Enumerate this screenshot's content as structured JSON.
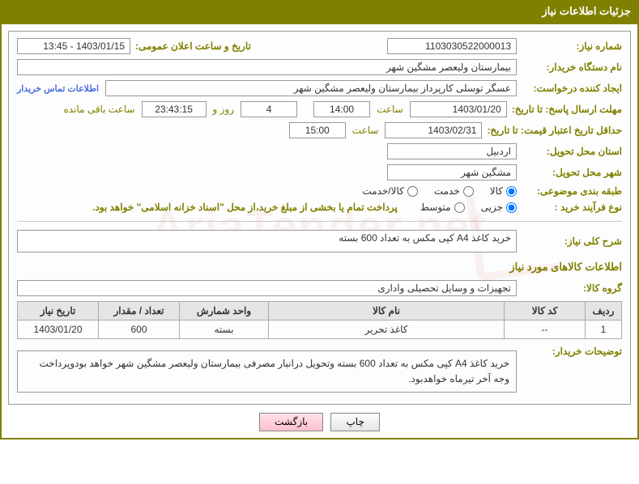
{
  "title": "جزئیات اطلاعات نیاز",
  "fields": {
    "need_no_label": "شماره نیاز:",
    "need_no": "1103030522000013",
    "announce_label": "تاریخ و ساعت اعلان عمومی:",
    "announce": "1403/01/15 - 13:45",
    "buyer_label": "نام دستگاه خریدار:",
    "buyer": "بیمارستان ولیعصر مشگین شهر",
    "requester_label": "ایجاد کننده درخواست:",
    "requester": "عسگر توسلی کارپرداز بیمارستان ولیعصر مشگین شهر",
    "contact_link": "اطلاعات تماس خریدار",
    "response_deadline_label": "مهلت ارسال پاسخ: تا تاریخ:",
    "response_date": "1403/01/20",
    "time_label": "ساعت",
    "response_time": "14:00",
    "days": "4",
    "days_and": "روز و",
    "remaining_time": "23:43:15",
    "remaining_label": "ساعت باقی مانده",
    "validity_label": "حداقل تاریخ اعتبار قیمت: تا تاریخ:",
    "validity_date": "1403/02/31",
    "validity_time": "15:00",
    "province_label": "استان محل تحویل:",
    "province": "اردبیل",
    "city_label": "شهر محل تحویل:",
    "city": "مشگین شهر",
    "category_label": "طبقه بندی موضوعی:",
    "cat_goods": "کالا",
    "cat_service": "خدمت",
    "cat_both": "کالا/خدمت",
    "process_label": "نوع فرآیند خرید :",
    "proc_partial": "جزیی",
    "proc_medium": "متوسط",
    "process_note": "پرداخت تمام یا بخشی از مبلغ خرید،از محل \"اسناد خزانه اسلامی\" خواهد بود.",
    "summary_label": "شرح کلی نیاز:",
    "summary": "خرید کاغذ   A4   کپی مکس به تعداد 600 بسته",
    "goods_section": "اطلاعات کالاهای مورد نیاز",
    "group_label": "گروه کالا:",
    "group": "تجهیزات و وسایل تحصیلی واداری",
    "notes_label": "توضیحات خریدار:",
    "notes": "خرید کاغذ   A4   کپی مکس به تعداد 600 بسته وتحویل درانبار مصرفی بیمارستان ولیعصر مشگین شهر خواهد بودوپرداخت وجه آخر تیرماه خواهدبود."
  },
  "table": {
    "headers": {
      "row": "ردیف",
      "code": "کد کالا",
      "name": "نام کالا",
      "unit": "واحد شمارش",
      "qty": "تعداد / مقدار",
      "date": "تاریخ نیاز"
    },
    "rows": [
      {
        "row": "1",
        "code": "--",
        "name": "کاغذ تحریر",
        "unit": "بسته",
        "qty": "600",
        "date": "1403/01/20"
      }
    ]
  },
  "buttons": {
    "print": "چاپ",
    "back": "بازگشت"
  },
  "watermark": "AriaTender.net"
}
